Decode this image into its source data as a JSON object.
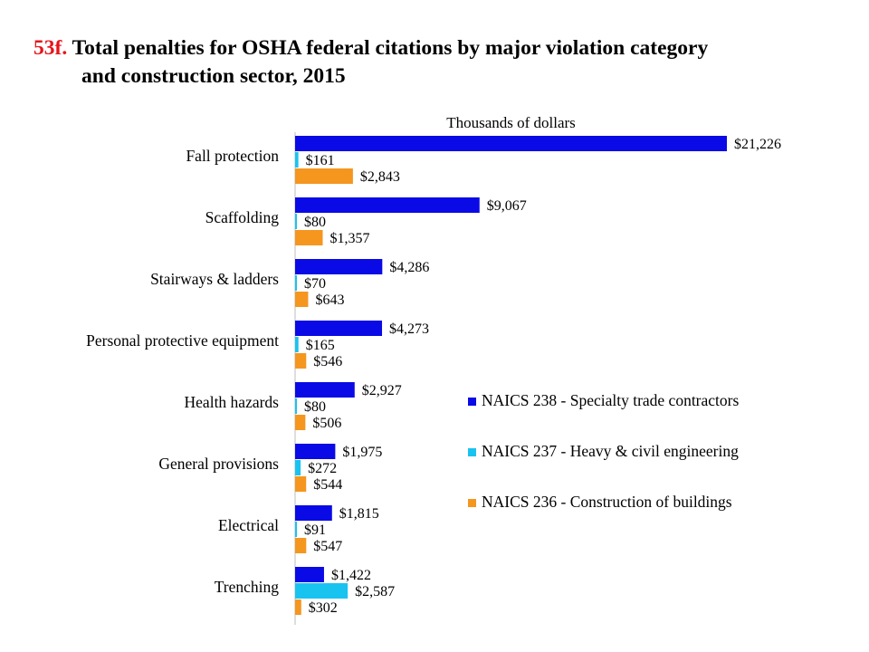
{
  "title": {
    "number": "53f.",
    "line1": "Total penalties for OSHA federal citations by major violation category",
    "line2": "and construction sector, 2015"
  },
  "chart_data": {
    "type": "bar",
    "orientation": "horizontal",
    "xlabel": "Thousands  of dollars",
    "categories": [
      "Fall protection",
      "Scaffolding",
      "Stairways & ladders",
      "Personal protective equipment",
      "Health hazards",
      "General provisions",
      "Electrical",
      "Trenching"
    ],
    "series": [
      {
        "name": "NAICS 238 - Specialty trade contractors",
        "color": "#0a0ae6",
        "values": [
          21226,
          9067,
          4286,
          4273,
          2927,
          1975,
          1815,
          1422
        ],
        "labels": [
          "$21,226",
          "$9,067",
          "$4,286",
          "$4,273",
          "$2,927",
          "$1,975",
          "$1,815",
          "$1,422"
        ]
      },
      {
        "name": "NAICS 237 - Heavy & civil engineering",
        "color": "#19c3f0",
        "values": [
          161,
          80,
          70,
          165,
          80,
          272,
          91,
          2587
        ],
        "labels": [
          "$161",
          "$80",
          "$70",
          "$165",
          "$80",
          "$272",
          "$91",
          "$2,587"
        ]
      },
      {
        "name": "NAICS 236 - Construction of buildings",
        "color": "#f5961e",
        "values": [
          2843,
          1357,
          643,
          546,
          506,
          544,
          547,
          302
        ],
        "labels": [
          "$2,843",
          "$1,357",
          "$643",
          "$546",
          "$506",
          "$544",
          "$547",
          "$302"
        ]
      }
    ],
    "xlim": [
      0,
      21226
    ],
    "grid": false,
    "legend_position": "right"
  }
}
